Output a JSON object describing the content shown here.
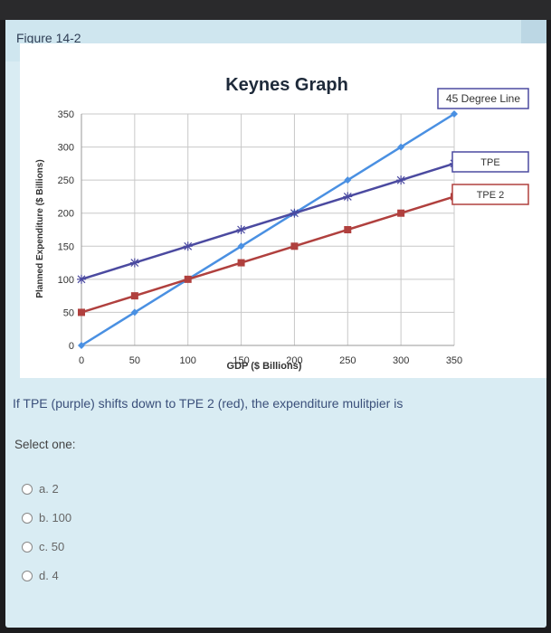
{
  "figure_label": "Figure 14-2",
  "question": "If TPE (purple) shifts down to TPE 2 (red), the expenditure mulitpier is",
  "select_label": "Select one:",
  "options": [
    "a. 2",
    "b. 100",
    "c. 50",
    "d. 4"
  ],
  "chart_data": {
    "type": "line",
    "title": "Keynes Graph",
    "xlabel": "GDP ($ Billions)",
    "ylabel": "Planned Expenditure ($ Billions)",
    "xlim": [
      0,
      350
    ],
    "ylim": [
      0,
      350
    ],
    "xticks": [
      "0",
      "50",
      "100",
      "150",
      "200",
      "250",
      "300",
      "350"
    ],
    "yticks": [
      "0",
      "50",
      "100",
      "150",
      "200",
      "250",
      "300",
      "350"
    ],
    "grid": true,
    "x": [
      0,
      50,
      100,
      150,
      200,
      250,
      300,
      350
    ],
    "series": [
      {
        "name": "45 Degree Line",
        "color": "#4a90e2",
        "marker": "diamond",
        "values": [
          0,
          50,
          100,
          150,
          200,
          250,
          300,
          350
        ]
      },
      {
        "name": "TPE",
        "color": "#4b4aa0",
        "marker": "star",
        "values": [
          100,
          125,
          150,
          175,
          200,
          225,
          250,
          275
        ]
      },
      {
        "name": "TPE 2",
        "color": "#b0403e",
        "marker": "square",
        "values": [
          50,
          75,
          100,
          125,
          150,
          175,
          200,
          225
        ]
      }
    ]
  }
}
